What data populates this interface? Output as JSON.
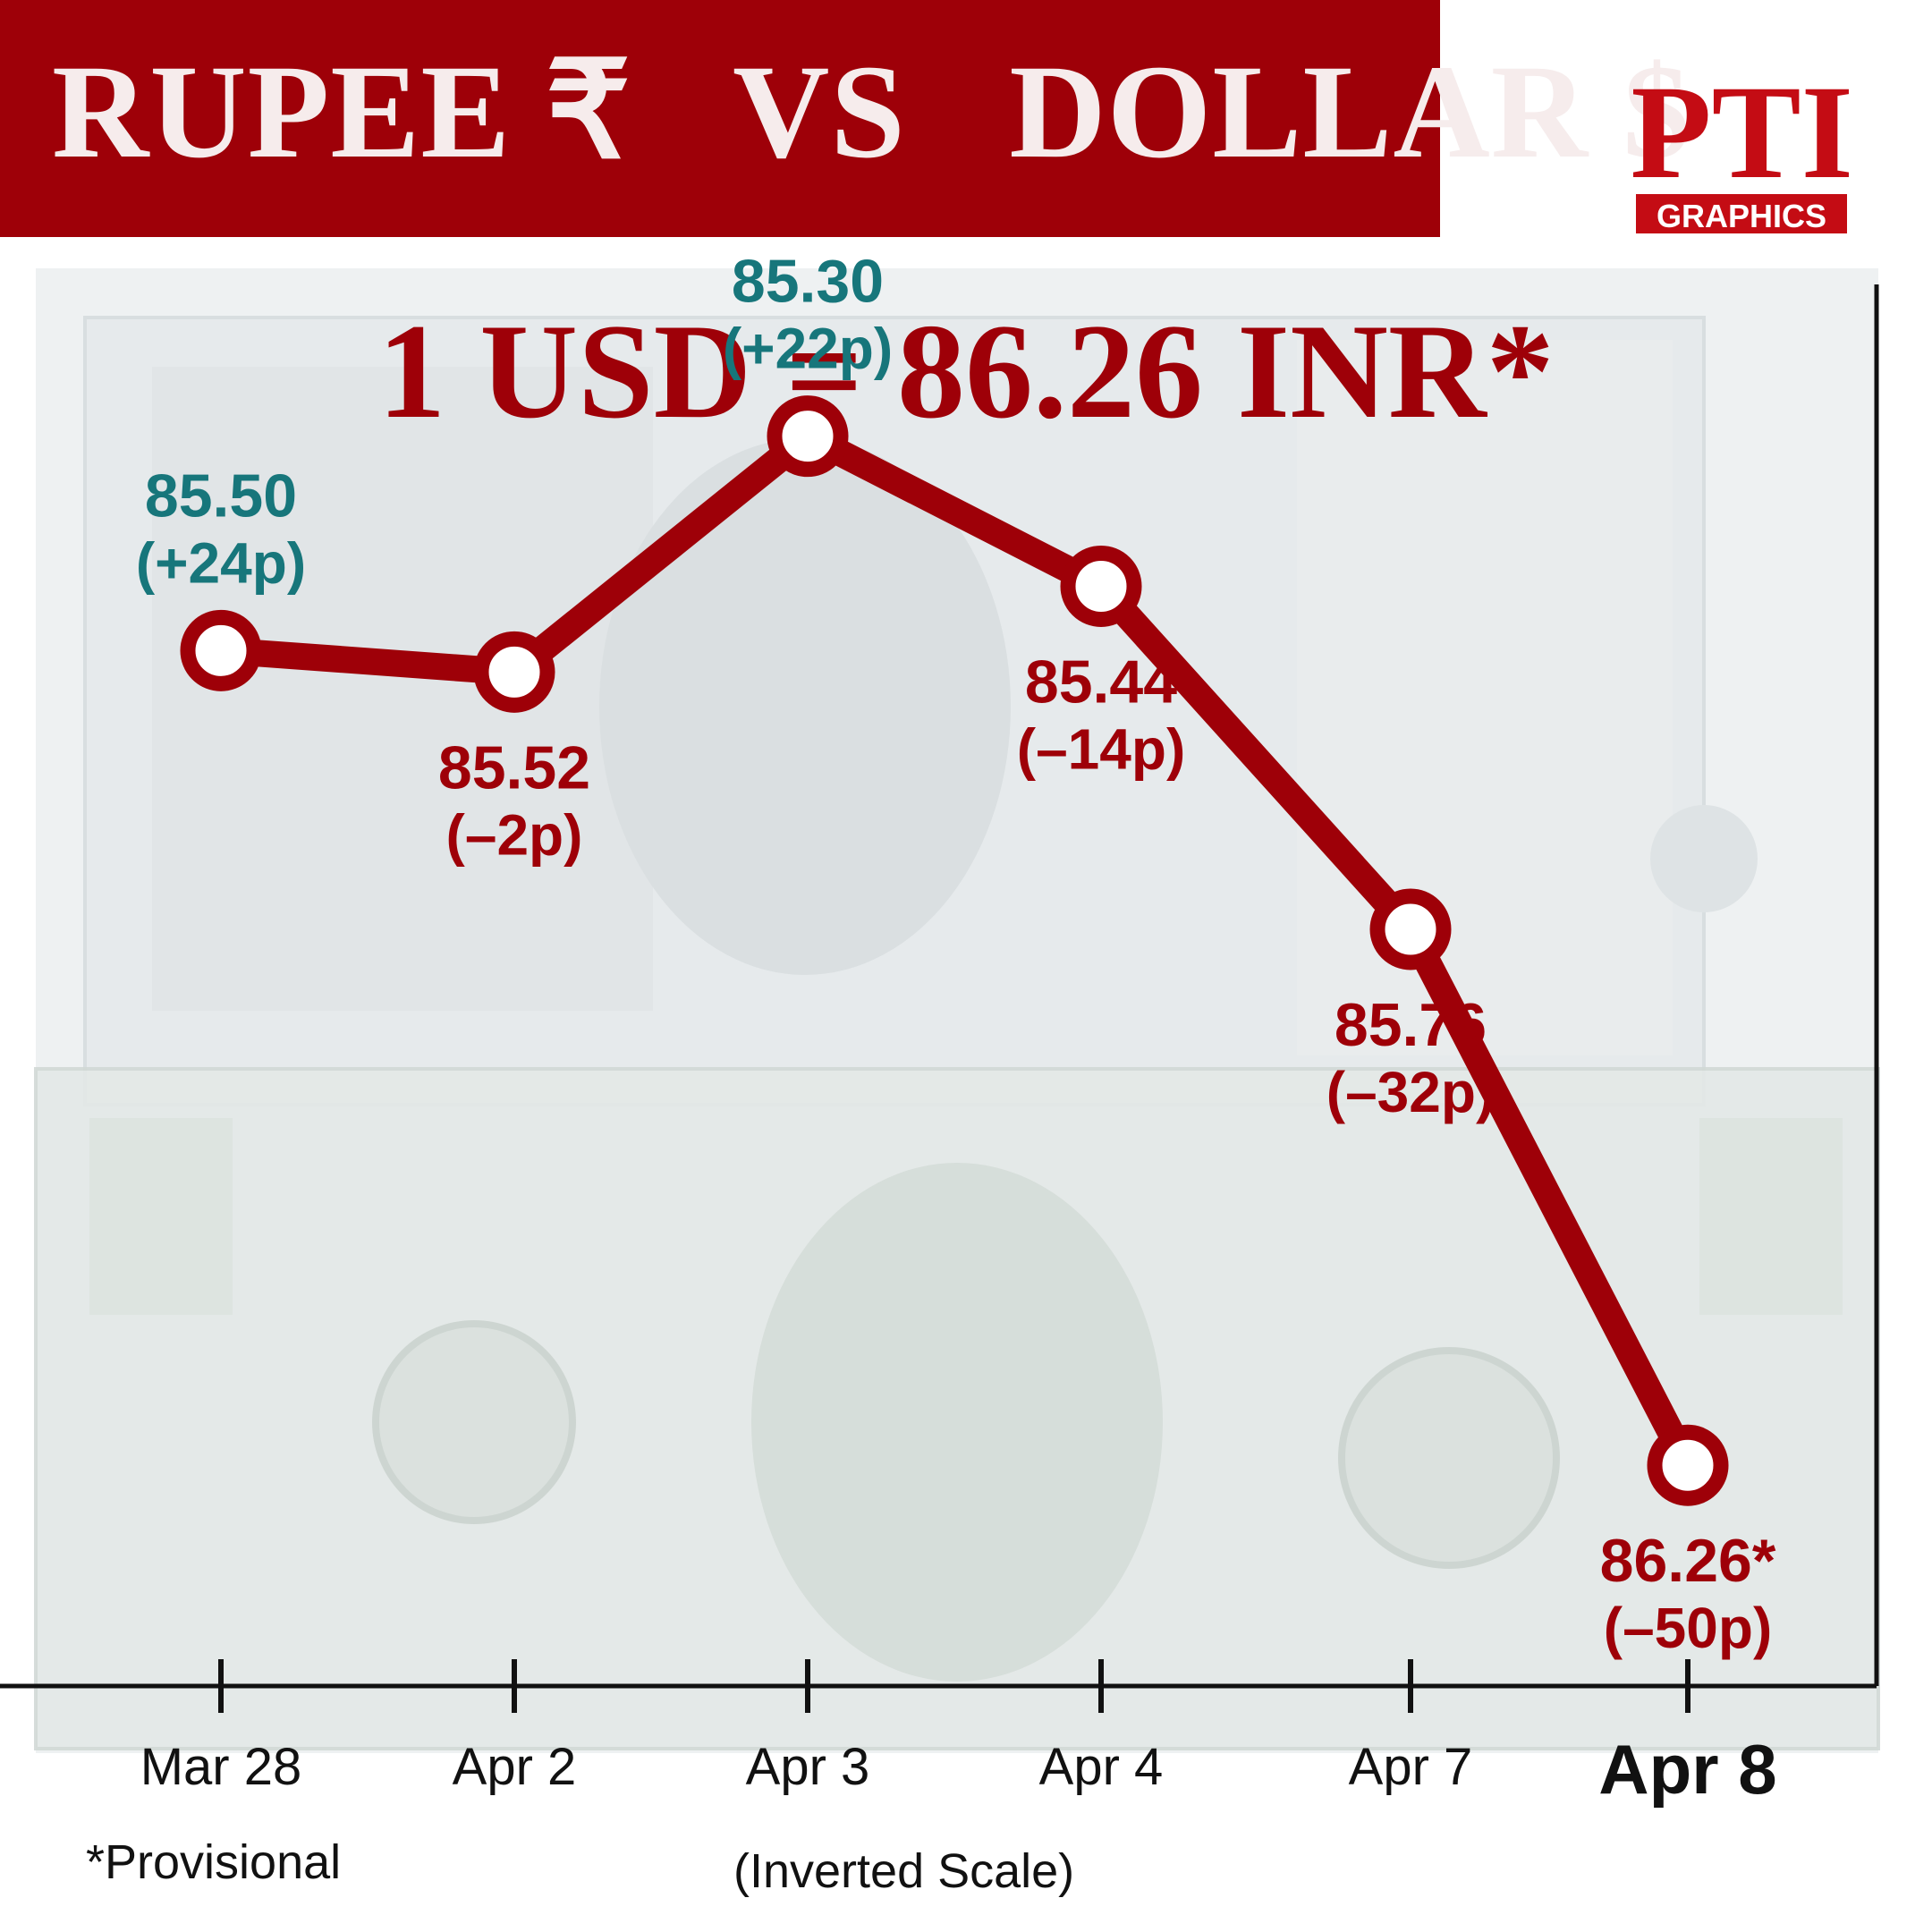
{
  "header": {
    "title": "RUPEE ₹   VS   DOLLAR $"
  },
  "logo": {
    "text": "PTI",
    "badge": "GRAPHICS"
  },
  "headline": "1 USD = 86.26 INR*",
  "footnote": "*Provisional",
  "scale_note": "(Inverted Scale)",
  "colors": {
    "brand_red": "#9e0008",
    "gain_teal": "#17767b",
    "loss_red": "#9e0008"
  },
  "chart_data": {
    "type": "line",
    "title": "",
    "xlabel": "",
    "ylabel": "",
    "inverted_y": true,
    "grid": false,
    "categories": [
      "Mar 28",
      "Apr 2",
      "Apr 3",
      "Apr 4",
      "Apr 7",
      "Apr 8"
    ],
    "values": [
      85.5,
      85.52,
      85.3,
      85.44,
      85.76,
      86.26
    ],
    "value_labels": [
      "85.50",
      "85.52",
      "85.30",
      "85.44",
      "85.76",
      "86.26*"
    ],
    "change_labels": [
      "(+24p)",
      "(–2p)",
      "(+22p)",
      "(–14p)",
      "(–32p)",
      "(–50p)"
    ],
    "trend": [
      "gain",
      "loss",
      "gain",
      "loss",
      "loss",
      "loss"
    ],
    "ylim": [
      85.06,
      86.42
    ],
    "highlight_category": "Apr 8"
  }
}
